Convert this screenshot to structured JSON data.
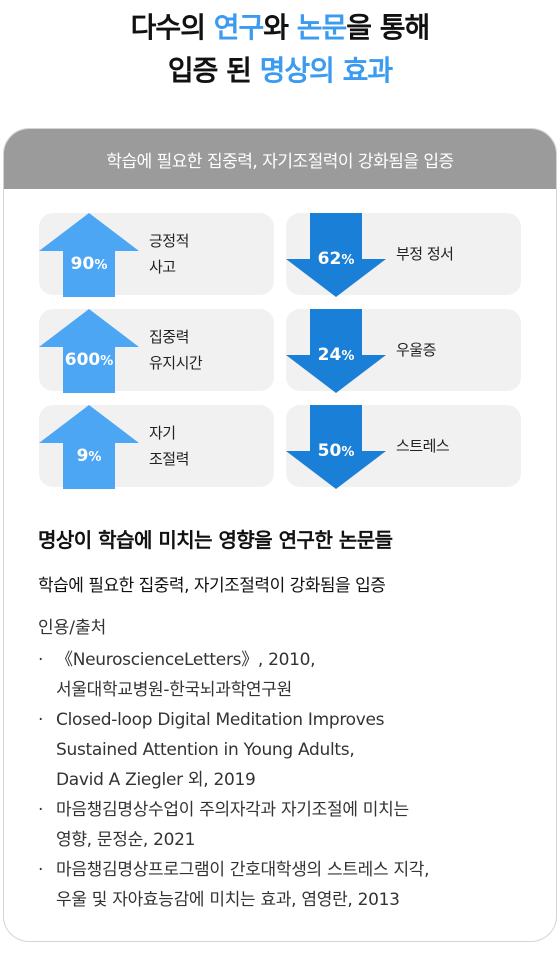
{
  "headline": {
    "line1": {
      "a": "다수의 ",
      "b": "연구",
      "c": "와 ",
      "d": "논문",
      "e": "을 통해"
    },
    "line2": {
      "a": "입증 된 ",
      "b": "명상의 효과"
    }
  },
  "card": {
    "header": "학습에 필요한 집중력, 자기조절력이 강화됨을 입증",
    "stats": [
      {
        "value": "90",
        "unit": "%",
        "direction": "up",
        "label1": "긍정적",
        "label2": "사고"
      },
      {
        "value": "62",
        "unit": "%",
        "direction": "down",
        "label1": "부정 정서",
        "label2": ""
      },
      {
        "value": "600",
        "unit": "%",
        "direction": "up",
        "label1": "집중력",
        "label2": "유지시간"
      },
      {
        "value": "24",
        "unit": "%",
        "direction": "down",
        "label1": "우울증",
        "label2": ""
      },
      {
        "value": "9",
        "unit": "%",
        "direction": "up",
        "label1": "자기",
        "label2": "조절력"
      },
      {
        "value": "50",
        "unit": "%",
        "direction": "down",
        "label1": "스트레스",
        "label2": ""
      }
    ],
    "section_title": "명상이 학습에 미치는 영향을 연구한 논문들",
    "section_subtitle": "학습에 필요한 집중력, 자기조절력이 강화됨을 입증",
    "citation_heading": "인용/출처",
    "citations": [
      {
        "l1": "《NeuroscienceLetters》, 2010,",
        "l2": "서울대학교병원-한국뇌과학연구원",
        "l3": ""
      },
      {
        "l1": "Closed-loop Digital Meditation Improves",
        "l2": "Sustained Attention in Young Adults,",
        "l3": "David A Ziegler 외, 2019"
      },
      {
        "l1": "마음챙김명상수업이 주의자각과 자기조절에 미치는",
        "l2": "영향, 문정순, 2021",
        "l3": ""
      },
      {
        "l1": "마음챙김명상프로그램이 간호대학생의 스트레스 지각,",
        "l2": "우울 및 자아효능감에 미치는 효과, 염영란, 2013",
        "l3": ""
      }
    ]
  },
  "colors": {
    "up_arrow": "#4da6f4",
    "down_arrow": "#1a7fd6",
    "accent_text": "#3a9bf0",
    "header_bg": "#9b9b9b"
  }
}
